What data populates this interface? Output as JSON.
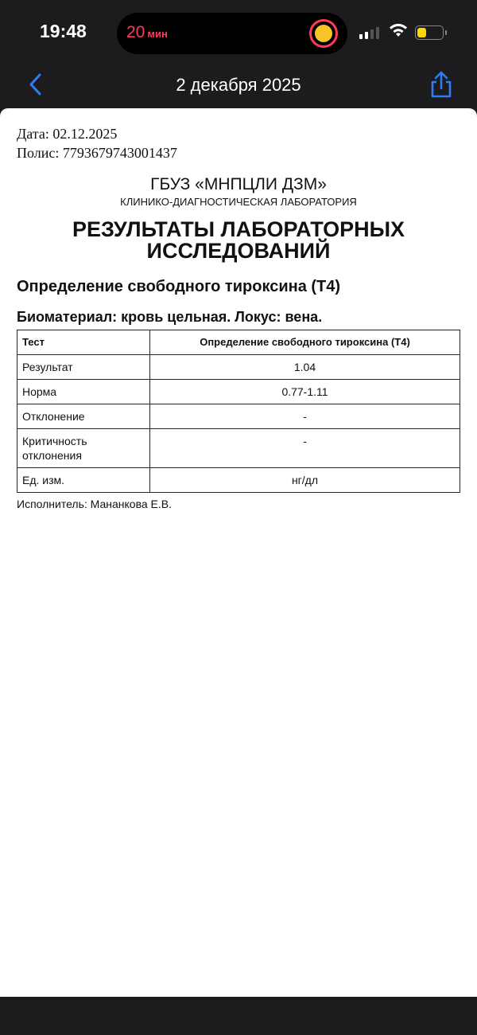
{
  "status_bar": {
    "time": "19:48",
    "timer_value": "20",
    "timer_unit": "мин",
    "battery_level": 0.35,
    "accent": "#ff3b5c"
  },
  "nav": {
    "title": "2 декабря 2025",
    "back_icon": "chevron-left-icon",
    "share_icon": "share-icon",
    "accent": "#2f7cf6"
  },
  "document": {
    "date": "Дата: 02.12.2025",
    "policy": "Полис: 7793679743001437",
    "org": "ГБУЗ «МНПЦЛИ ДЗМ»",
    "dept": "КЛИНИКО-ДИАГНОСТИЧЕСКАЯ ЛАБОРАТОРИЯ",
    "title": "РЕЗУЛЬТАТЫ ЛАБОРАТОРНЫХ ИССЛЕДОВАНИЙ",
    "test_name": "Определение свободного тироксина (Т4)",
    "biomaterial": "Биоматериал: кровь цельная. Локус: вена.",
    "table": {
      "header": [
        "Тест",
        "Определение свободного тироксина (Т4)"
      ],
      "rows": [
        [
          "Результат",
          "1.04"
        ],
        [
          "Норма",
          "0.77-1.11"
        ],
        [
          "Отклонение",
          "-"
        ],
        [
          "Критичность отклонения",
          "-"
        ],
        [
          "Ед. изм.",
          "нг/дл"
        ]
      ]
    },
    "executor": "Исполнитель: Мананкова Е.В."
  }
}
